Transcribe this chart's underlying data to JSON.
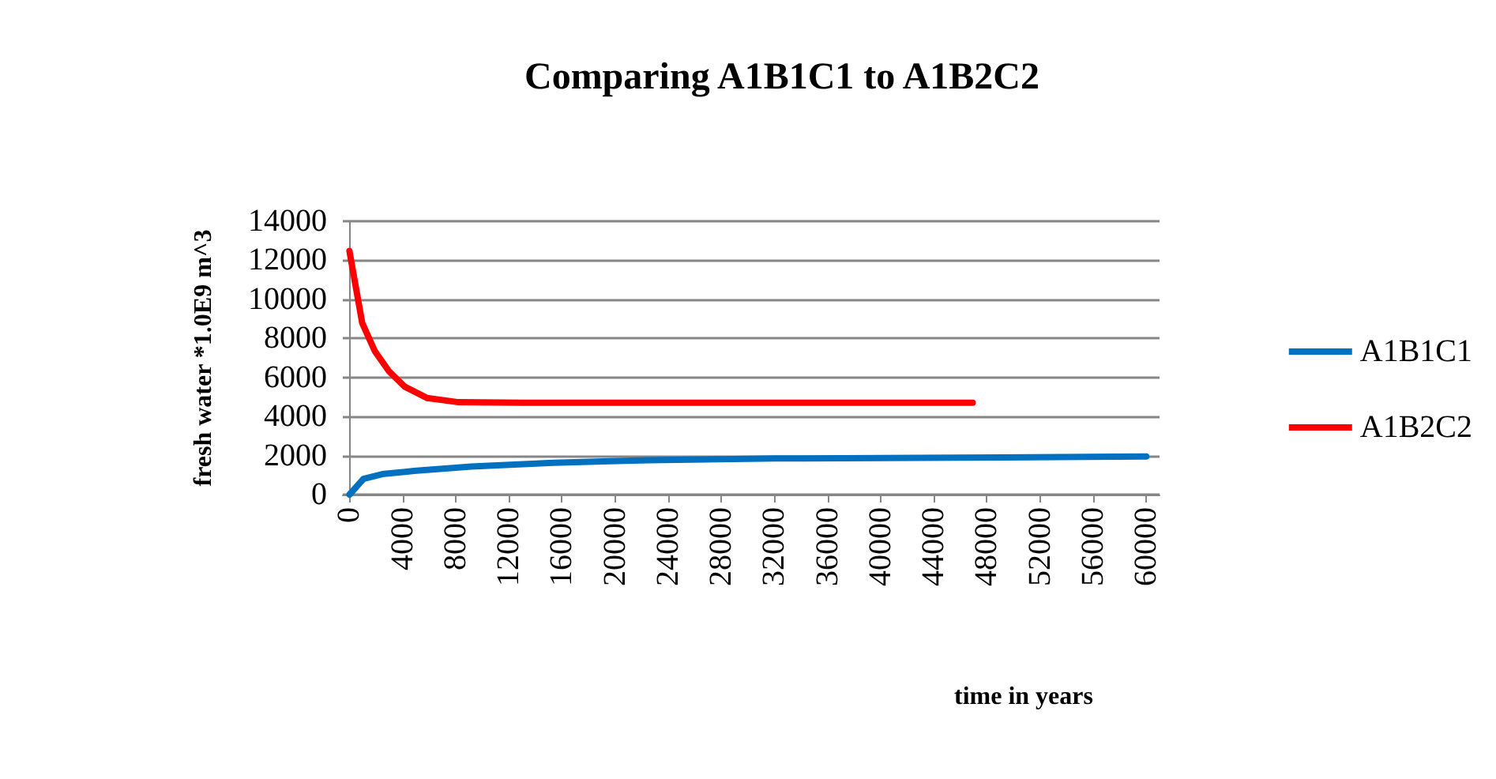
{
  "chart_data": {
    "type": "line",
    "title": "Comparing A1B1C1 to A1B2C2",
    "xlabel": "time in years",
    "ylabel": "fresh water *1.0E9 m^3",
    "xlim": [
      -500,
      61000
    ],
    "xticks": [
      0,
      4000,
      8000,
      12000,
      16000,
      20000,
      24000,
      28000,
      32000,
      36000,
      40000,
      44000,
      48000,
      52000,
      56000,
      60000
    ],
    "ylim": [
      0,
      14000
    ],
    "yticks": [
      0,
      2000,
      4000,
      6000,
      8000,
      10000,
      12000,
      14000
    ],
    "grid": "y",
    "legend": "right",
    "marker": "none",
    "line_style": "solid",
    "series": [
      {
        "name": "A1B1C1",
        "color": "#0070c0",
        "x": [
          0,
          1050,
          2480,
          4870,
          9180,
          15380,
          22560,
          32100,
          46000,
          60000
        ],
        "values": [
          0,
          800,
          1050,
          1210,
          1440,
          1630,
          1760,
          1850,
          1890,
          1950
        ]
      },
      {
        "name": "A1B2C2",
        "color": "#ff0000",
        "x": [
          0,
          960,
          1910,
          2960,
          4160,
          5830,
          8220,
          13000,
          46930
        ],
        "values": [
          12470,
          8790,
          7350,
          6330,
          5530,
          4950,
          4730,
          4700,
          4700
        ]
      }
    ]
  }
}
